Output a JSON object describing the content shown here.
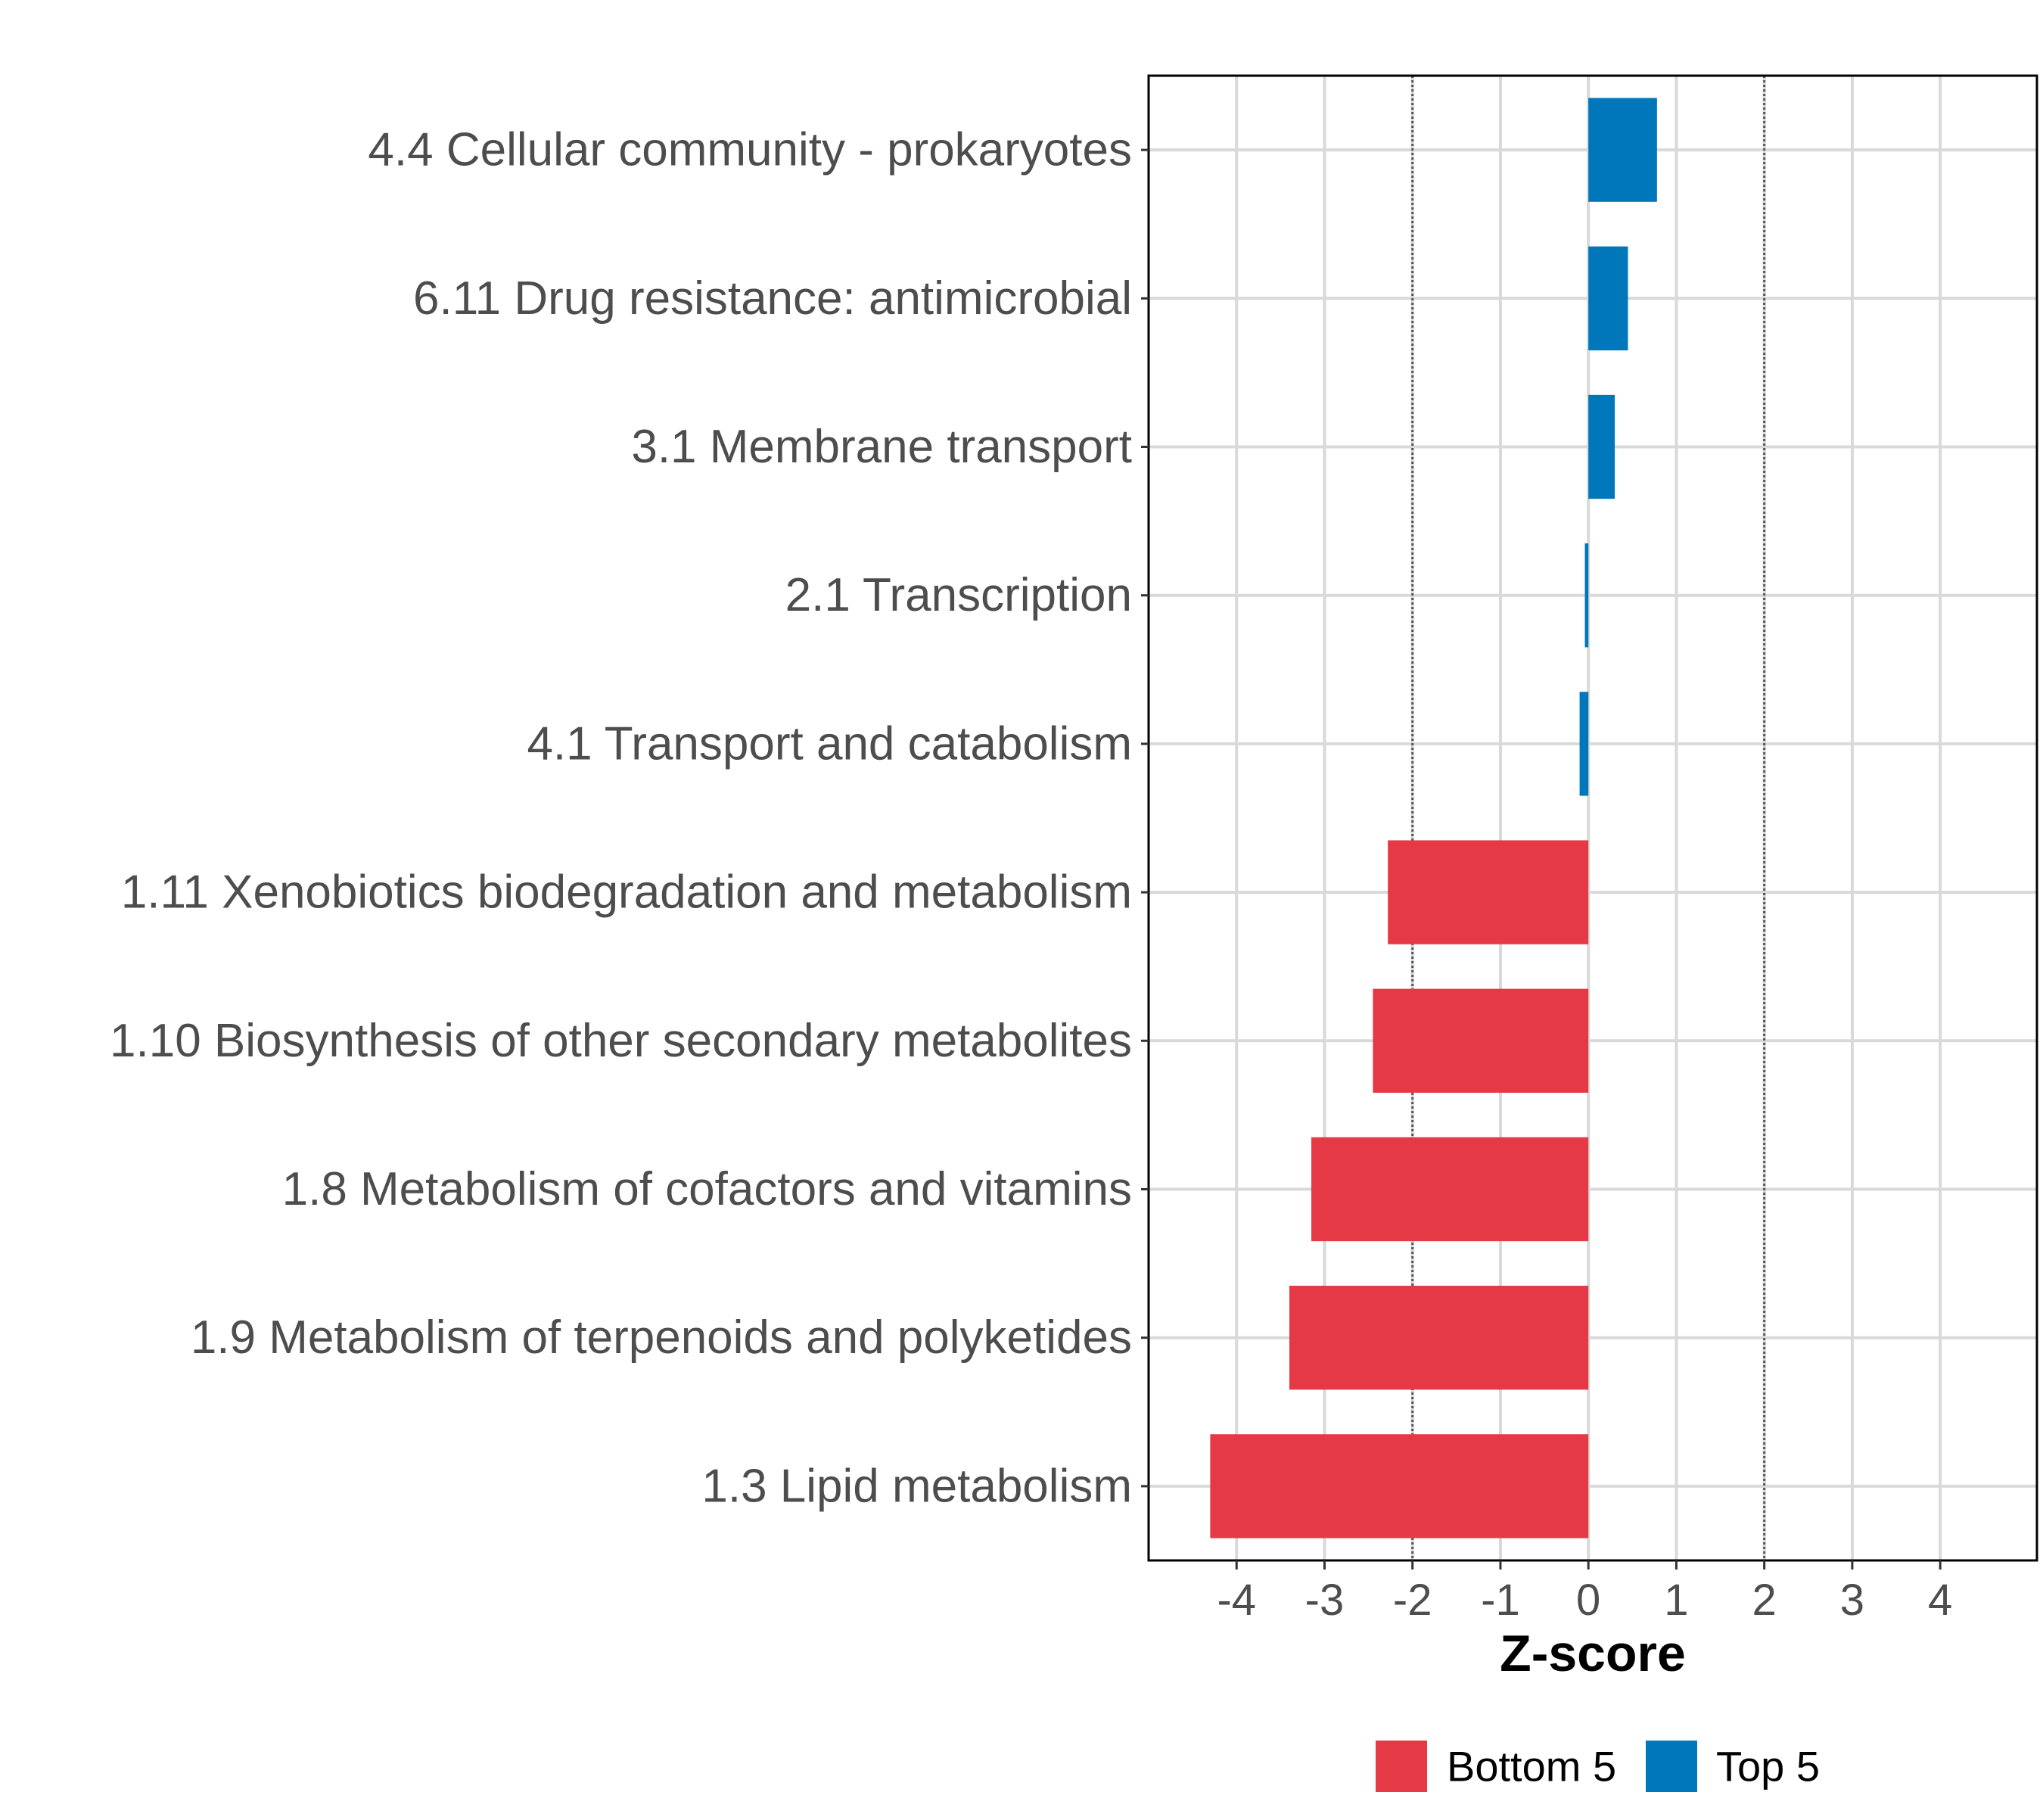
{
  "chart_data": {
    "type": "bar",
    "orientation": "horizontal",
    "title": "",
    "xlabel": "Z-score",
    "ylabel": "",
    "xlim": [
      -5,
      5.1
    ],
    "xticks": [
      "-4",
      "-3",
      "-2",
      "-1",
      "0",
      "1",
      "2",
      "3",
      "4"
    ],
    "reference_lines": [
      -2,
      2
    ],
    "grid": true,
    "legend_position": "bottom",
    "categories": [
      "4.4 Cellular community - prokaryotes",
      "6.11 Drug resistance: antimicrobial",
      "3.1 Membrane transport",
      "2.1 Transcription",
      "4.1 Transport and catabolism",
      "1.11 Xenobiotics biodegradation and metabolism",
      "1.10 Biosynthesis of other secondary metabolites",
      "1.8 Metabolism of cofactors and vitamins",
      "1.9 Metabolism of terpenoids and polyketides",
      "1.3 Lipid metabolism"
    ],
    "values": [
      0.78,
      0.45,
      0.3,
      -0.04,
      -0.1,
      -2.28,
      -2.45,
      -3.15,
      -3.4,
      -4.3
    ],
    "groups": [
      "Top 5",
      "Top 5",
      "Top 5",
      "Top 5",
      "Top 5",
      "Bottom 5",
      "Bottom 5",
      "Bottom 5",
      "Bottom 5",
      "Bottom 5"
    ],
    "legend": [
      {
        "name": "Bottom 5",
        "color": "#e63946"
      },
      {
        "name": "Top 5",
        "color": "#0077bb"
      }
    ]
  }
}
